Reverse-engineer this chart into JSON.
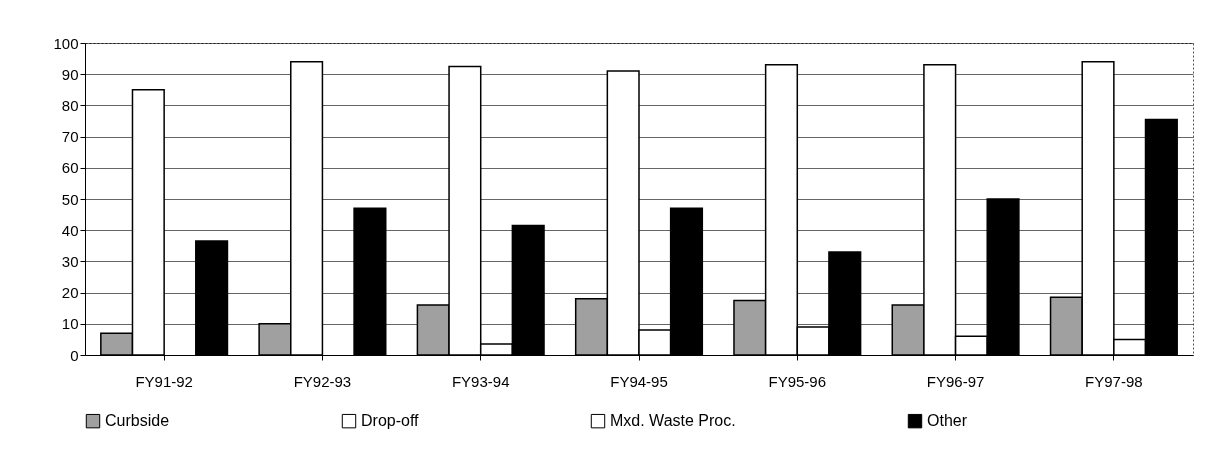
{
  "chart_data": {
    "type": "bar",
    "categories": [
      "FY91-92",
      "FY92-93",
      "FY93-94",
      "FY94-95",
      "FY95-96",
      "FY96-97",
      "FY97-98"
    ],
    "series": [
      {
        "name": "Curbside",
        "color": "#a0a0a0",
        "values": [
          7,
          10,
          16,
          18,
          17.5,
          16,
          18.5
        ]
      },
      {
        "name": "Drop-off",
        "color": "#ffffff",
        "values": [
          85,
          94,
          92.5,
          91,
          93,
          93,
          94
        ]
      },
      {
        "name": "Mxd. Waste Proc.",
        "color": "#ffffff",
        "values": [
          0,
          0,
          3.5,
          8,
          9,
          6,
          5
        ]
      },
      {
        "name": "Other",
        "color": "#000000",
        "values": [
          36.5,
          47,
          41.5,
          47,
          33,
          50,
          75.5
        ]
      }
    ],
    "ylim": [
      0,
      100
    ],
    "yticks": [
      0,
      10,
      20,
      30,
      40,
      50,
      60,
      70,
      80,
      90,
      100
    ],
    "grid": "y",
    "legend": "bottom"
  }
}
